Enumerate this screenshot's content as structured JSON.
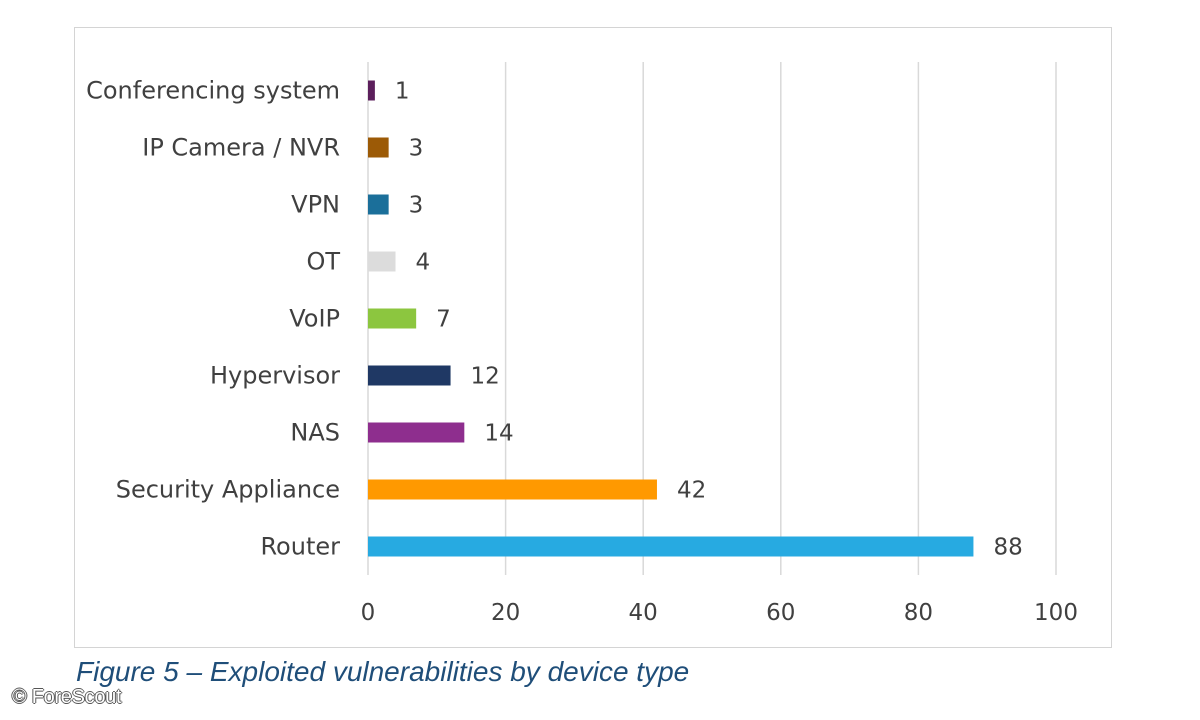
{
  "chart_data": {
    "type": "bar",
    "orientation": "horizontal",
    "categories": [
      "Conferencing system",
      "IP Camera / NVR",
      "VPN",
      "OT",
      "VoIP",
      "Hypervisor",
      "NAS",
      "Security Appliance",
      "Router"
    ],
    "values": [
      1,
      3,
      3,
      4,
      7,
      12,
      14,
      42,
      88
    ],
    "colors": [
      "#5c1f5c",
      "#9c5a06",
      "#1b6f9a",
      "#dcdcdc",
      "#8cc63f",
      "#1f3864",
      "#8e2e8e",
      "#ff9900",
      "#27aae1"
    ],
    "xlim": [
      0,
      100
    ],
    "xticks": [
      0,
      20,
      40,
      60,
      80,
      100
    ],
    "grid": true,
    "legend": "none"
  },
  "caption": "Figure 5 – Exploited vulnerabilities by device type",
  "copyright": "© ForeScout"
}
